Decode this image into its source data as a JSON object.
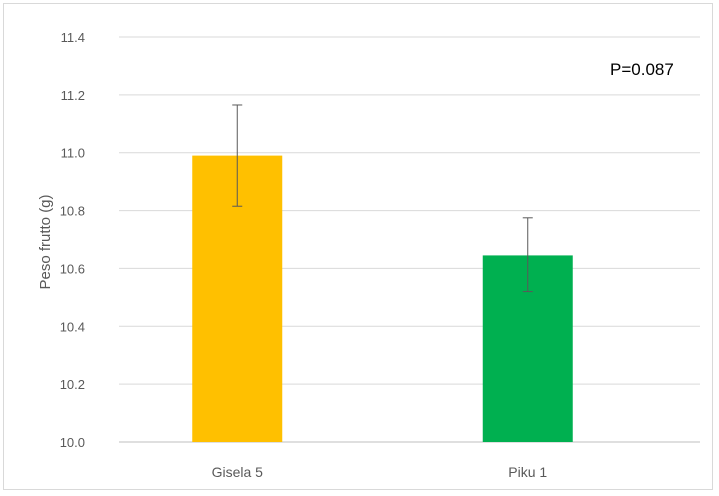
{
  "chart_data": {
    "type": "bar",
    "title": "",
    "xlabel": "",
    "ylabel": "Peso frutto (g)",
    "ylim": [
      10.0,
      11.4
    ],
    "yticks": [
      "10.0",
      "10.2",
      "10.4",
      "10.6",
      "10.8",
      "11.0",
      "11.2",
      "11.4"
    ],
    "categories": [
      "Gisela 5",
      "Piku 1"
    ],
    "values": [
      10.99,
      10.645
    ],
    "error_low": [
      10.815,
      10.52
    ],
    "error_high": [
      11.165,
      10.775
    ],
    "colors": [
      "#FFC000",
      "#00B050"
    ],
    "grid": true,
    "legend": "none",
    "annotation": "P=0.087"
  }
}
